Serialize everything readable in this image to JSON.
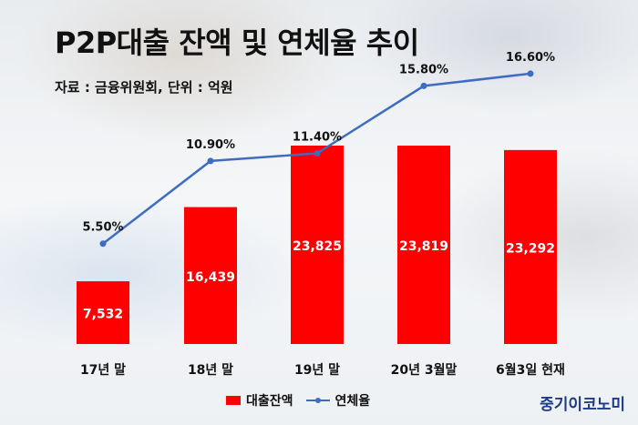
{
  "title": "P2P대출 잔액 및 연체율 추이",
  "source": "자료 : 금융위원회, 단위 : 억원",
  "brand": "중기이코노미",
  "colors": {
    "bar": "#ff0000",
    "line": "#3d6cc0"
  },
  "chart_data": {
    "type": "bar",
    "title": "P2P대출 잔액 및 연체율 추이",
    "categories": [
      "17년 말",
      "18년 말",
      "19년 말",
      "20년 3월말",
      "6월3일 현재"
    ],
    "series": [
      {
        "name": "대출잔액",
        "type": "bar",
        "values": [
          7532,
          16439,
          23825,
          23819,
          23292
        ],
        "labels": [
          "7,532",
          "16,439",
          "23,825",
          "23,819",
          "23,292"
        ]
      },
      {
        "name": "연체율",
        "type": "line",
        "values": [
          5.5,
          10.9,
          11.4,
          15.8,
          16.6
        ],
        "labels": [
          "5.50%",
          "10.90%",
          "11.40%",
          "15.80%",
          "16.60%"
        ]
      }
    ],
    "legend": [
      "대출잔액",
      "연체율"
    ],
    "legend_position": "bottom",
    "grid": false
  }
}
